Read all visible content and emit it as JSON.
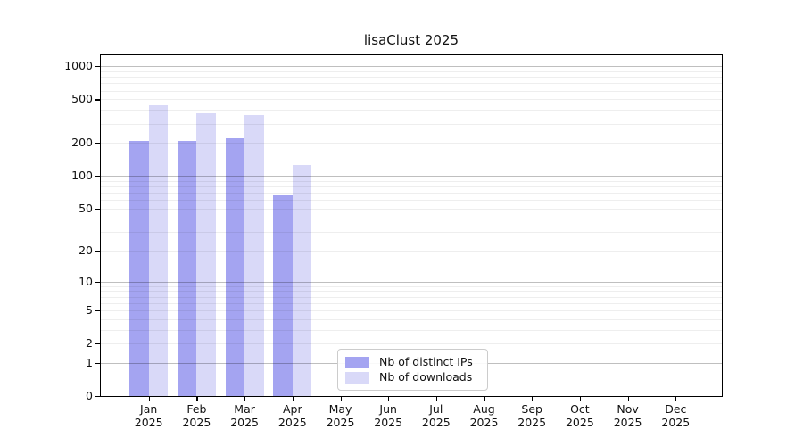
{
  "title": "lisaClust 2025",
  "chart_data": {
    "type": "bar",
    "title": "lisaClust 2025",
    "y_scale": "log10(value+1)",
    "categories": [
      "Jan",
      "Feb",
      "Mar",
      "Apr",
      "May",
      "Jun",
      "Jul",
      "Aug",
      "Sep",
      "Oct",
      "Nov",
      "Dec"
    ],
    "category_year": "2025",
    "series": [
      {
        "name": "Nb of distinct IPs",
        "color": "#a4a4f1",
        "values": [
          210,
          209,
          222,
          66,
          null,
          null,
          null,
          null,
          null,
          null,
          null,
          null
        ]
      },
      {
        "name": "Nb of downloads",
        "color": "#d9d9f8",
        "values": [
          440,
          371,
          363,
          126,
          null,
          null,
          null,
          null,
          null,
          null,
          null,
          null
        ]
      }
    ],
    "yticks": [
      0,
      1,
      2,
      5,
      10,
      20,
      50,
      100,
      200,
      500,
      1000
    ],
    "ylim": [
      0,
      1300
    ],
    "xlabel": "",
    "ylabel": "",
    "grid": "horizontal major+minor, drawn above bars",
    "legend_position": "inside lower center"
  },
  "style_colors": {
    "bar_distinct_ips": "#a4a4f1",
    "bar_downloads": "#d9d9f8",
    "grid_major": "#c2c2c2",
    "grid_minor": "#efefef",
    "spine": "#000000",
    "background": "#ffffff"
  }
}
